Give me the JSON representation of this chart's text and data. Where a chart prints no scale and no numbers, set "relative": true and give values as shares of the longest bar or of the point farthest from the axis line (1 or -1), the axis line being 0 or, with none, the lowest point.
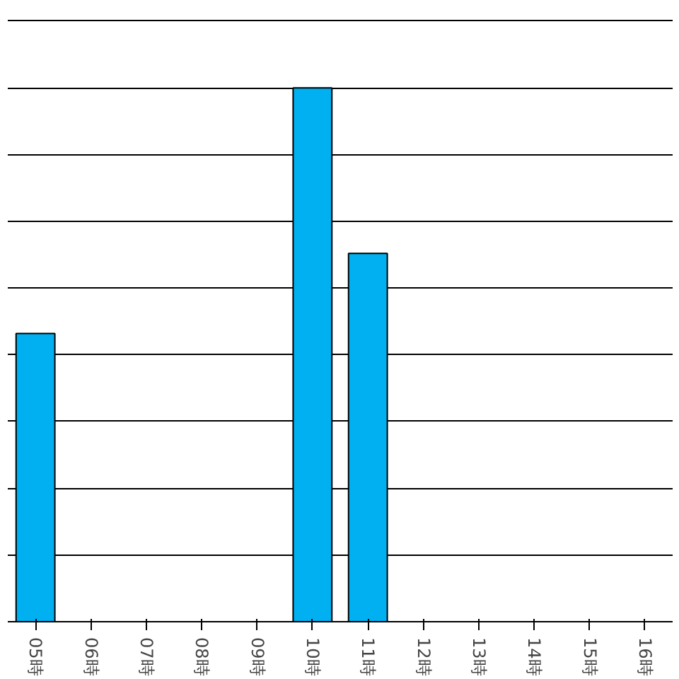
{
  "chart_data": {
    "type": "bar",
    "relative": true,
    "grid": "y",
    "categories": [
      "05時",
      "06時",
      "07時",
      "08時",
      "09時",
      "10時",
      "11時",
      "12時",
      "13時",
      "14時",
      "15時",
      "16時"
    ],
    "series": [
      {
        "color": "#00b0f0",
        "values": [
          0.54,
          0,
          0,
          0,
          0,
          1,
          0.69,
          0,
          0,
          0,
          0,
          0
        ]
      }
    ]
  }
}
